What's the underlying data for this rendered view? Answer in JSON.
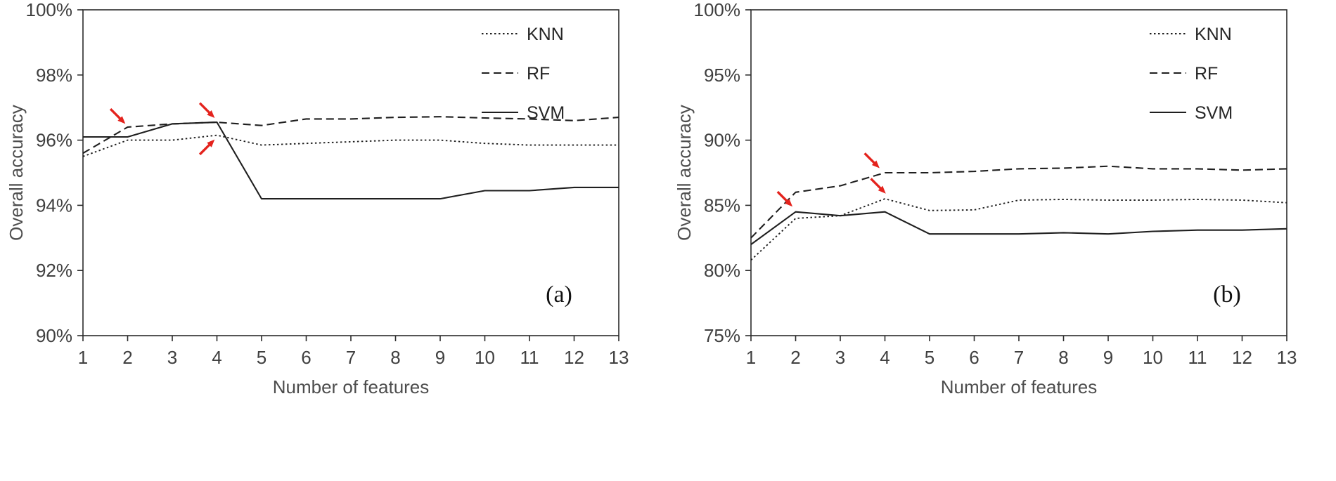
{
  "figure": {
    "background": "#ffffff",
    "line_color": "#1f1f1f",
    "axis_color": "#2b2b2b",
    "tick_text_color": "#404040",
    "axis_label_color": "#4d4d4d",
    "legend_text_color": "#262626",
    "arrow_color": "#e4231d"
  },
  "chart_data": [
    {
      "type": "line",
      "panel_label": "(a)",
      "xlabel": "Number of features",
      "ylabel": "Overall accuracy",
      "x": [
        1,
        2,
        3,
        4,
        5,
        6,
        7,
        8,
        9,
        10,
        11,
        12,
        13
      ],
      "xtick_labels": [
        "1",
        "2",
        "3",
        "4",
        "5",
        "6",
        "7",
        "8",
        "9",
        "10",
        "11",
        "12",
        "13"
      ],
      "xlim": [
        1,
        13
      ],
      "ylim": [
        90,
        100
      ],
      "yticks": [
        90,
        92,
        94,
        96,
        98,
        100
      ],
      "ytick_labels": [
        "90%",
        "92%",
        "94%",
        "96%",
        "98%",
        "100%"
      ],
      "grid": false,
      "legend_position": "top-right",
      "series": [
        {
          "name": "KNN",
          "line_style": "dotted",
          "values": [
            95.5,
            96.0,
            96.0,
            96.15,
            95.85,
            95.9,
            95.95,
            96.0,
            96.0,
            95.9,
            95.85,
            95.85,
            95.85
          ]
        },
        {
          "name": "RF",
          "line_style": "dashed",
          "values": [
            95.6,
            96.4,
            96.5,
            96.55,
            96.45,
            96.65,
            96.65,
            96.7,
            96.72,
            96.68,
            96.65,
            96.6,
            96.7
          ]
        },
        {
          "name": "SVM",
          "line_style": "solid",
          "values": [
            96.1,
            96.1,
            96.5,
            96.55,
            94.2,
            94.2,
            94.2,
            94.2,
            94.2,
            94.45,
            94.45,
            94.55,
            94.55
          ]
        }
      ],
      "annotations": [
        {
          "type": "arrow",
          "x": 1.95,
          "y": 96.5,
          "direction": "down-right"
        },
        {
          "type": "arrow",
          "x": 3.95,
          "y": 96.68,
          "direction": "down-right"
        },
        {
          "type": "arrow",
          "x": 3.95,
          "y": 96.02,
          "direction": "up-right"
        }
      ]
    },
    {
      "type": "line",
      "panel_label": "(b)",
      "xlabel": "Number of features",
      "ylabel": "Overall accuracy",
      "x": [
        1,
        2,
        3,
        4,
        5,
        6,
        7,
        8,
        9,
        10,
        11,
        12,
        13
      ],
      "xtick_labels": [
        "1",
        "2",
        "3",
        "4",
        "5",
        "6",
        "7",
        "8",
        "9",
        "10",
        "11",
        "12",
        "13"
      ],
      "xlim": [
        1,
        13
      ],
      "ylim": [
        75,
        100
      ],
      "yticks": [
        75,
        80,
        85,
        90,
        95,
        100
      ],
      "ytick_labels": [
        "75%",
        "80%",
        "85%",
        "90%",
        "95%",
        "100%"
      ],
      "grid": false,
      "legend_position": "top-right",
      "series": [
        {
          "name": "KNN",
          "line_style": "dotted",
          "values": [
            80.8,
            84.0,
            84.2,
            85.5,
            84.6,
            84.65,
            85.4,
            85.45,
            85.4,
            85.4,
            85.45,
            85.4,
            85.2
          ]
        },
        {
          "name": "RF",
          "line_style": "dashed",
          "values": [
            82.5,
            86.0,
            86.5,
            87.5,
            87.5,
            87.6,
            87.8,
            87.85,
            88.0,
            87.8,
            87.8,
            87.7,
            87.8
          ]
        },
        {
          "name": "SVM",
          "line_style": "solid",
          "values": [
            82.0,
            84.5,
            84.2,
            84.5,
            82.8,
            82.8,
            82.8,
            82.9,
            82.8,
            83.0,
            83.1,
            83.1,
            83.2
          ]
        }
      ],
      "annotations": [
        {
          "type": "arrow",
          "x": 1.93,
          "y": 84.9,
          "direction": "down-right"
        },
        {
          "type": "arrow",
          "x": 3.88,
          "y": 87.85,
          "direction": "down-right"
        },
        {
          "type": "arrow",
          "x": 4.02,
          "y": 85.9,
          "direction": "down-right"
        }
      ]
    }
  ]
}
